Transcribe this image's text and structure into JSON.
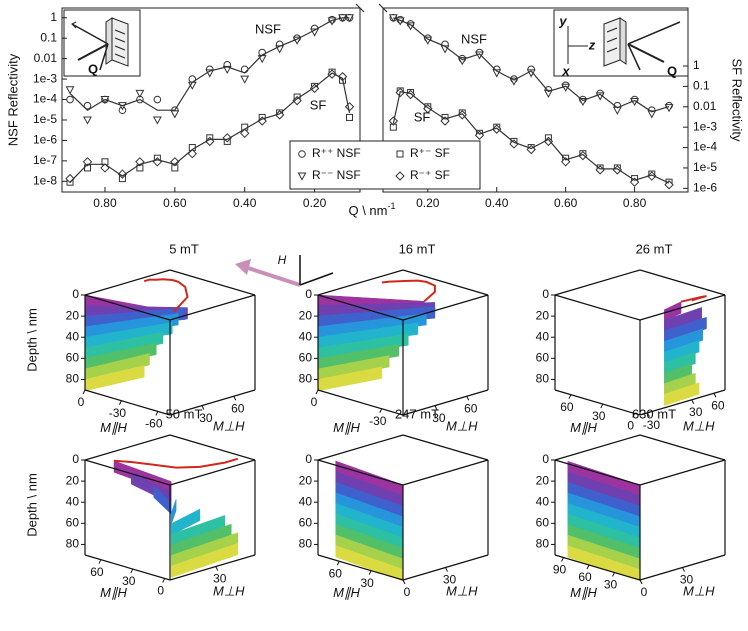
{
  "chart_data": [
    {
      "type": "reflectivity",
      "log_y": true,
      "color": "#333333",
      "ylabel": "NSF Reflectivity",
      "xlim": [
        0.923,
        0.07
      ],
      "xticks": [
        {
          "value": 0.8,
          "label": "0.80"
        },
        {
          "value": 0.6,
          "label": "0.60"
        },
        {
          "value": 0.4,
          "label": "0.40"
        },
        {
          "value": 0.2,
          "label": "0.20"
        }
      ],
      "ylim": [
        3e-09,
        3
      ],
      "yticks": [
        1,
        0.1,
        0.01,
        {
          "value": 0.001,
          "label": "1e-3"
        },
        {
          "value": 0.0001,
          "label": "1e-4"
        },
        {
          "value": 1e-05,
          "label": "1e-5"
        },
        {
          "value": 1e-06,
          "label": "1e-6"
        },
        1e-07,
        1e-08
      ],
      "y2lim": [
        6.6e-07,
        700
      ],
      "annotations": [
        "NSF",
        "SF",
        "Q"
      ],
      "x": [
        0.9,
        0.85,
        0.8,
        0.75,
        0.7,
        0.65,
        0.6,
        0.55,
        0.5,
        0.45,
        0.4,
        0.35,
        0.3,
        0.25,
        0.2,
        0.15,
        0.12,
        0.1
      ],
      "series": [
        {
          "marker": "circle",
          "values": [
            0.0001,
            5e-05,
            0.0001,
            3e-05,
            0.0001,
            0.0001,
            3e-05,
            0.001,
            0.003,
            0.005,
            0.003,
            0.02,
            0.05,
            0.1,
            0.3,
            0.8,
            1,
            1
          ]
        },
        {
          "marker": "triangle",
          "values": [
            0.0003,
            1e-05,
            0.0001,
            5e-05,
            0.0002,
            1e-05,
            2e-05,
            0.0005,
            0.002,
            0.003,
            0.001,
            0.01,
            0.03,
            0.08,
            0.2,
            0.7,
            1,
            1
          ]
        },
        {
          "marker": "square",
          "axis": "y2",
          "values": [
            2e-06,
            1e-05,
            2e-05,
            3e-06,
            1e-05,
            3e-05,
            1e-05,
            0.0001,
            0.0003,
            0.0002,
            0.001,
            0.003,
            0.005,
            0.03,
            0.1,
            0.5,
            0.2,
            0.003
          ]
        },
        {
          "marker": "diamond",
          "axis": "y2",
          "values": [
            3e-06,
            2e-05,
            1e-05,
            5e-06,
            2e-05,
            2e-05,
            2e-05,
            5e-05,
            0.0002,
            0.0003,
            0.0005,
            0.002,
            0.004,
            0.02,
            0.08,
            0.4,
            0.3,
            0.01
          ]
        },
        {
          "marker": "line",
          "values": [
            0.0002,
            3e-05,
            0.0001,
            5e-05,
            0.0001,
            3e-05,
            3e-05,
            0.0007,
            0.0025,
            0.004,
            0.002,
            0.015,
            0.04,
            0.09,
            0.25,
            0.75,
            1,
            1
          ]
        },
        {
          "marker": "line",
          "axis": "y2",
          "values": [
            2e-06,
            1.5e-05,
            1.5e-05,
            4e-06,
            1.5e-05,
            2.5e-05,
            1.5e-05,
            8e-05,
            0.00025,
            0.00025,
            0.0008,
            0.0025,
            0.0045,
            0.025,
            0.09,
            0.45,
            0.25,
            0.005
          ]
        }
      ]
    },
    {
      "type": "reflectivity",
      "log_y": true,
      "color": "#333333",
      "xlabel": "Q \\ nm",
      "xlabel_sup": "-1",
      "y2label": "SF Reflectivity",
      "legend": "bottom-center",
      "xlim": [
        0.07,
        0.955
      ],
      "xticks": [
        {
          "value": 0.2,
          "label": "0.20"
        },
        {
          "value": 0.4,
          "label": "0.40"
        },
        {
          "value": 0.6,
          "label": "0.60"
        },
        {
          "value": 0.8,
          "label": "0.80"
        }
      ],
      "ylim": [
        3e-09,
        3
      ],
      "y2lim": [
        6.6e-07,
        700
      ],
      "y2ticks": [
        1,
        0.1,
        0.01,
        {
          "value": 0.001,
          "label": "1e-3"
        },
        {
          "value": 0.0001,
          "label": "1e-4"
        },
        {
          "value": 1e-05,
          "label": "1e-5"
        },
        {
          "value": 1e-06,
          "label": "1e-6"
        }
      ],
      "annotations": [
        "NSF",
        "SF",
        "y",
        "z",
        "x",
        "Q"
      ],
      "x": [
        0.1,
        0.12,
        0.15,
        0.2,
        0.25,
        0.3,
        0.35,
        0.4,
        0.45,
        0.5,
        0.55,
        0.6,
        0.65,
        0.7,
        0.75,
        0.8,
        0.85,
        0.9
      ],
      "series": [
        {
          "name": "R⁺⁺ NSF",
          "marker": "circle",
          "values": [
            1,
            0.8,
            0.5,
            0.1,
            0.05,
            0.01,
            0.02,
            0.003,
            0.001,
            0.003,
            0.0003,
            0.0005,
            0.0001,
            0.0002,
            5e-05,
            0.0001,
            3e-05,
            5e-05
          ]
        },
        {
          "name": "R⁻⁻ NSF",
          "marker": "triangle",
          "values": [
            1,
            0.7,
            0.4,
            0.08,
            0.03,
            0.008,
            0.015,
            0.002,
            0.0008,
            0.002,
            0.0002,
            0.0004,
            8e-05,
            0.00015,
            3e-05,
            8e-05,
            2e-05,
            4e-05
          ]
        },
        {
          "name": "R⁺⁻ SF",
          "marker": "square",
          "axis": "y2",
          "values": [
            0.001,
            0.06,
            0.05,
            0.01,
            0.003,
            0.005,
            0.0005,
            0.001,
            0.0002,
            0.0001,
            0.0003,
            3e-05,
            5e-05,
            1e-05,
            1e-05,
            3e-06,
            5e-06,
            2e-06
          ]
        },
        {
          "name": "R⁻⁺ SF",
          "marker": "diamond",
          "axis": "y2",
          "values": [
            0.002,
            0.05,
            0.04,
            0.008,
            0.002,
            0.004,
            0.0004,
            0.0008,
            0.00015,
            8e-05,
            0.0002,
            2e-05,
            4e-05,
            8e-06,
            8e-06,
            2e-06,
            4e-06,
            1.5e-06
          ]
        },
        {
          "marker": "line",
          "values": [
            1,
            0.75,
            0.45,
            0.09,
            0.04,
            0.009,
            0.017,
            0.0025,
            0.0009,
            0.0025,
            0.00025,
            0.00045,
            9e-05,
            0.00018,
            4e-05,
            9e-05,
            2.5e-05,
            4.5e-05
          ]
        },
        {
          "marker": "line",
          "axis": "y2",
          "values": [
            0.0015,
            0.055,
            0.045,
            0.009,
            0.0025,
            0.0045,
            0.00045,
            0.0009,
            0.00018,
            9e-05,
            0.00025,
            2.5e-05,
            4.5e-05,
            9e-06,
            9e-06,
            2.5e-06,
            4.5e-06,
            1.8e-06
          ]
        }
      ]
    },
    {
      "type": "profile3d",
      "title": "5 mT",
      "ylabel": "Depth \\ nm",
      "annotations": [
        "H"
      ],
      "color": "#d0281e",
      "ylim": [
        0,
        90
      ],
      "yticks": [
        0,
        20,
        40,
        60,
        80
      ],
      "par_label": "M∥H",
      "par_lim": [
        0,
        -70
      ],
      "par_ticks": [
        0,
        -30,
        -60
      ],
      "perp_label": "M⊥H",
      "perp_lim": [
        0,
        80
      ],
      "perp_ticks": [
        30,
        60
      ],
      "depth": [
        5,
        15,
        25,
        35,
        45,
        55,
        65,
        75,
        85
      ],
      "m_par": [
        -60,
        -45,
        -30,
        -20,
        -15,
        -10,
        -8,
        -5,
        -5
      ],
      "m_perp": [
        15,
        45,
        60,
        65,
        65,
        62,
        58,
        55,
        50
      ]
    },
    {
      "type": "profile3d",
      "title": "16 mT",
      "color": "#d0281e",
      "ylim": [
        0,
        90
      ],
      "yticks": [
        0,
        20,
        40,
        60,
        80
      ],
      "par_label": "M∥H",
      "par_lim": [
        0,
        -40
      ],
      "par_ticks": [
        0,
        -30
      ],
      "perp_label": "M⊥H",
      "perp_lim": [
        0,
        80
      ],
      "perp_ticks": [
        30,
        60
      ],
      "depth": [
        5,
        15,
        25,
        35,
        45,
        55,
        65,
        75,
        85
      ],
      "m_par": [
        -30,
        -25,
        -20,
        -15,
        -12,
        -10,
        -8,
        -6,
        -5
      ],
      "m_perp": [
        40,
        60,
        70,
        72,
        70,
        65,
        60,
        55,
        50
      ]
    },
    {
      "type": "profile3d",
      "title": "26 mT",
      "color": "#d0281e",
      "ylim": [
        0,
        90
      ],
      "yticks": [
        0,
        20,
        40,
        60,
        80
      ],
      "par_label": "M∥H",
      "par_lim": [
        75,
        -5
      ],
      "par_ticks": [
        60,
        30,
        0
      ],
      "perp_label": "M⊥H",
      "perp_lim": [
        -40,
        75
      ],
      "perp_ticks": [
        -30,
        30,
        60
      ],
      "depth": [
        5,
        15,
        25,
        35,
        45,
        55,
        65,
        75,
        85
      ],
      "m_par": [
        5,
        3,
        2,
        2,
        2,
        2,
        2,
        2,
        2
      ],
      "m_perp": [
        30,
        55,
        60,
        55,
        50,
        45,
        40,
        45,
        50
      ]
    },
    {
      "type": "profile3d",
      "title": "50 mT",
      "ylabel": "Depth \\ nm",
      "color": "#d0281e",
      "ylim": [
        0,
        90
      ],
      "yticks": [
        0,
        20,
        40,
        60,
        80
      ],
      "par_label": "M∥H",
      "par_lim": [
        75,
        -5
      ],
      "par_ticks": [
        60,
        30,
        0
      ],
      "perp_label": "M⊥H",
      "perp_lim": [
        -5,
        60
      ],
      "perp_ticks": [
        30
      ],
      "depth": [
        5,
        15,
        25,
        35,
        45,
        55,
        65,
        75,
        85
      ],
      "m_par": [
        60,
        50,
        35,
        20,
        10,
        5,
        5,
        5,
        5
      ],
      "m_perp": [
        5,
        10,
        15,
        20,
        30,
        45,
        50,
        55,
        55
      ]
    },
    {
      "type": "profile3d",
      "title": "247 mT",
      "color": "#d0281e",
      "ylim": [
        0,
        90
      ],
      "yticks": [
        0,
        20,
        40,
        60,
        80
      ],
      "par_label": "M∥H",
      "par_lim": [
        80,
        0
      ],
      "par_ticks": [
        60,
        30
      ],
      "perp_label": "M⊥H",
      "perp_lim": [
        0,
        60
      ],
      "perp_ticks": [
        0,
        30
      ],
      "depth": [
        5,
        15,
        25,
        35,
        45,
        55,
        65,
        75,
        85
      ],
      "m_par": [
        70,
        70,
        70,
        70,
        70,
        70,
        70,
        70,
        70
      ],
      "m_perp": [
        5,
        5,
        5,
        5,
        5,
        5,
        5,
        5,
        5
      ]
    },
    {
      "type": "profile3d",
      "title": "630 mT",
      "color": "#d0281e",
      "ylim": [
        0,
        90
      ],
      "yticks": [
        0,
        20,
        40,
        60,
        80
      ],
      "par_label": "M∥H",
      "par_lim": [
        100,
        0
      ],
      "par_ticks": [
        90,
        60,
        30
      ],
      "perp_label": "M⊥H",
      "perp_lim": [
        0,
        60
      ],
      "perp_ticks": [
        0,
        30
      ],
      "depth": [
        5,
        15,
        25,
        35,
        45,
        55,
        65,
        75,
        85
      ],
      "m_par": [
        90,
        90,
        90,
        90,
        90,
        90,
        90,
        90,
        90
      ],
      "m_perp": [
        3,
        3,
        3,
        3,
        3,
        3,
        3,
        3,
        3
      ]
    }
  ]
}
